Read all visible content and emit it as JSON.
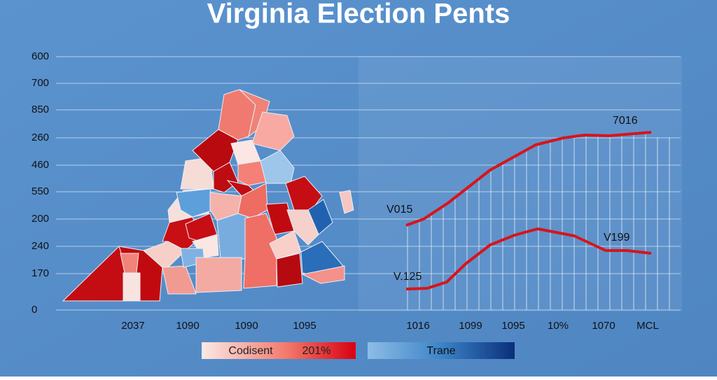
{
  "title": "Virginia Election Pents",
  "y_labels": [
    "600",
    "700",
    "850",
    "260",
    "460",
    "550",
    "200",
    "240",
    "170",
    "0"
  ],
  "map_x_labels": [
    "2037",
    "1090",
    "1090",
    "1095"
  ],
  "chart_x_labels": [
    "1016",
    "1099",
    "1095",
    "10%",
    "1070",
    "MCL"
  ],
  "annotations": [
    "7016",
    "V015",
    "V199",
    "V.125"
  ],
  "legend": {
    "red": [
      "Codisent",
      "201%"
    ],
    "blue": "Trane"
  }
}
